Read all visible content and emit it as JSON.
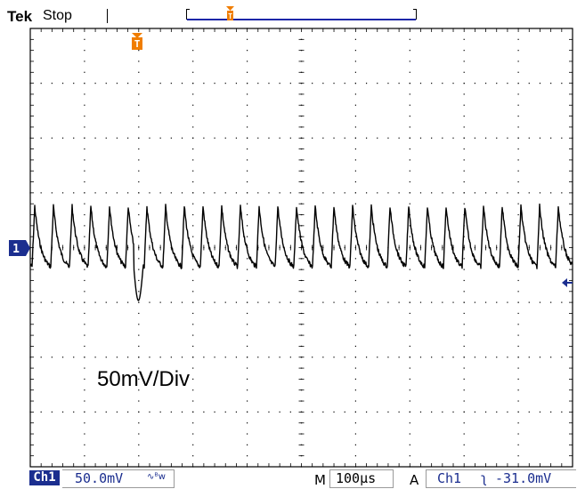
{
  "header": {
    "brand": "Tek",
    "acquisition_state": "Stop"
  },
  "markers": {
    "trigger_position_marker": "T",
    "channel_marker": "1"
  },
  "waveform": {
    "channel": "Ch1",
    "volts_per_div_mV": 50,
    "time_per_div_us": 100,
    "description_source": "annotation",
    "trace_color": "#000000",
    "grid_color": "#000000"
  },
  "annotation": {
    "text": "50mV/Div"
  },
  "status_bar": {
    "channel_label": "Ch1",
    "volts_per_div": "50.0mV",
    "coupling_symbols": "∿ᴮw",
    "m_label": "M",
    "time_per_div": "100µs",
    "a_label": "A",
    "trigger_source": "Ch1",
    "trigger_slope_symbol": "ᒥ",
    "trigger_level": "-31.0mV"
  },
  "colors": {
    "channel_blue": "#1b2e8f",
    "trigger_orange": "#f07d00",
    "background": "#ffffff"
  }
}
